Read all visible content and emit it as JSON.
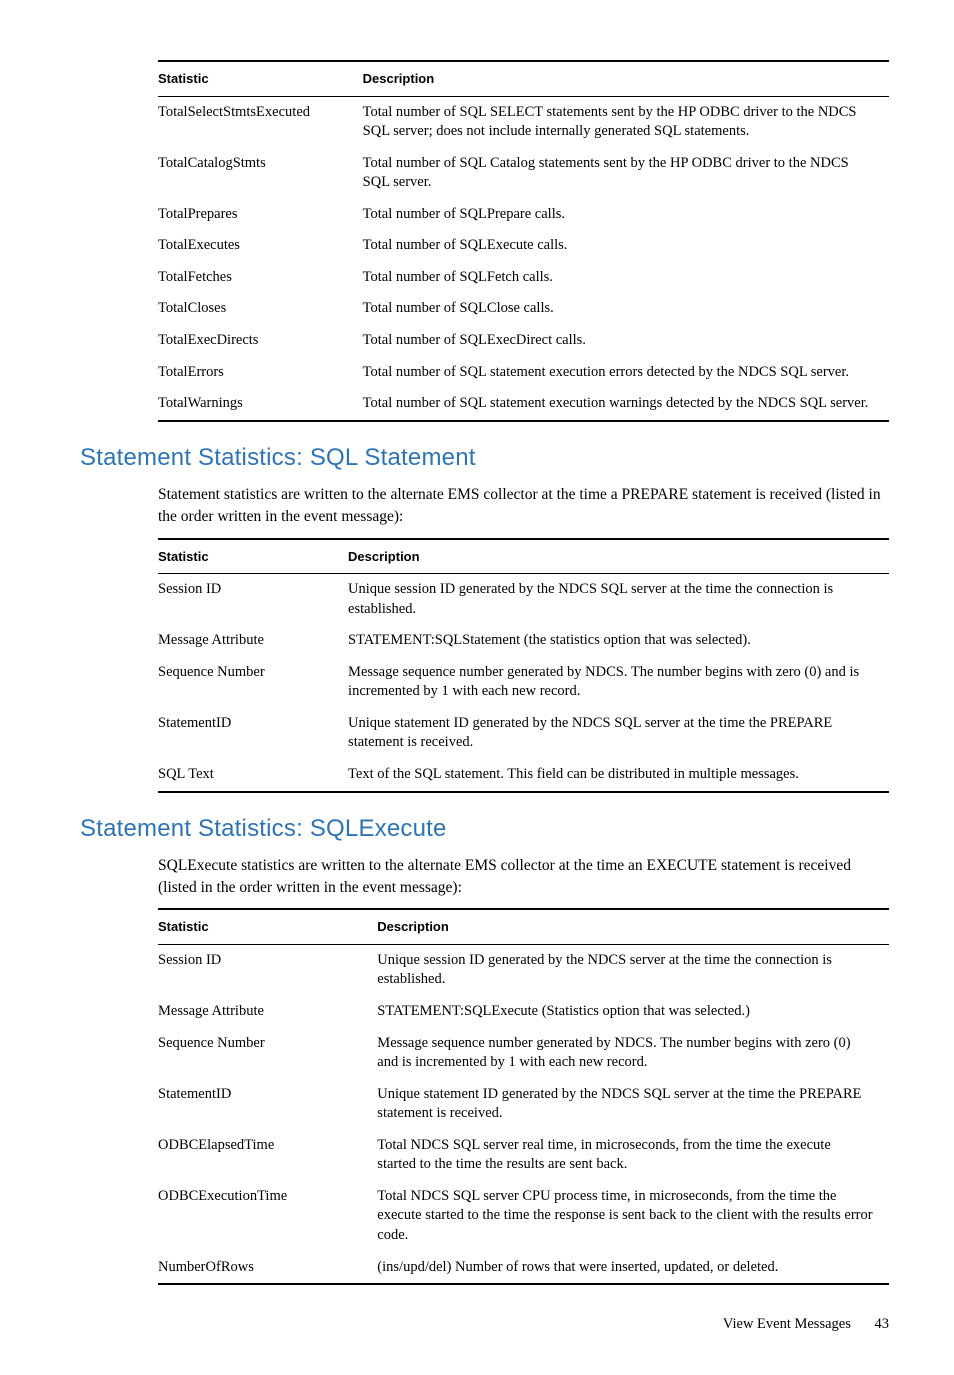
{
  "colors": {
    "heading": "#2d74b5",
    "rule": "#000000",
    "text": "#000000",
    "background": "#ffffff"
  },
  "typography": {
    "body_font": "Palatino / serif",
    "heading_font": "Helvetica Neue / sans-serif",
    "body_size_pt": 11,
    "heading_size_pt": 18,
    "table_header_size_pt": 10
  },
  "table1": {
    "headers": {
      "col1": "Statistic",
      "col2": "Description"
    },
    "rows": [
      {
        "stat": "TotalSelectStmtsExecuted",
        "desc": "Total number of SQL SELECT statements sent by the HP ODBC driver to the NDCS SQL server; does not include internally generated SQL statements."
      },
      {
        "stat": "TotalCatalogStmts",
        "desc": "Total number of SQL Catalog statements sent by the HP ODBC driver to the NDCS SQL server."
      },
      {
        "stat": "TotalPrepares",
        "desc": "Total number of SQLPrepare calls."
      },
      {
        "stat": "TotalExecutes",
        "desc": "Total number of SQLExecute calls."
      },
      {
        "stat": "TotalFetches",
        "desc": "Total number of SQLFetch calls."
      },
      {
        "stat": "TotalCloses",
        "desc": "Total number of SQLClose calls."
      },
      {
        "stat": "TotalExecDirects",
        "desc": "Total number of SQLExecDirect calls."
      },
      {
        "stat": "TotalErrors",
        "desc": "Total number of SQL statement execution errors detected by the NDCS SQL server."
      },
      {
        "stat": "TotalWarnings",
        "desc": "Total number of SQL statement execution warnings detected by the NDCS SQL server."
      }
    ]
  },
  "section2": {
    "heading": "Statement Statistics: SQL Statement",
    "paragraph": "Statement statistics are written to the alternate EMS collector at the time a PREPARE statement is received (listed in the order written in the event message):"
  },
  "table2": {
    "headers": {
      "col1": "Statistic",
      "col2": "Description"
    },
    "rows": [
      {
        "stat": "Session ID",
        "desc": "Unique session ID generated by the NDCS SQL server at the time the connection is established."
      },
      {
        "stat": "Message Attribute",
        "desc": "STATEMENT:SQLStatement (the statistics option that was selected)."
      },
      {
        "stat": "Sequence Number",
        "desc": "Message sequence number generated by NDCS. The number begins with zero (0) and is incremented by 1 with each new record."
      },
      {
        "stat": "StatementID",
        "desc": "Unique statement ID generated by the NDCS SQL server at the time the PREPARE statement is received."
      },
      {
        "stat": "SQL Text",
        "desc": "Text of the SQL statement. This field can be distributed in multiple messages."
      }
    ]
  },
  "section3": {
    "heading": "Statement Statistics: SQLExecute",
    "paragraph": "SQLExecute statistics are written to the alternate EMS collector at the time an EXECUTE statement is received (listed in the order written in the event message):"
  },
  "table3": {
    "headers": {
      "col1": "Statistic",
      "col2": "Description"
    },
    "rows": [
      {
        "stat": "Session ID",
        "desc": "Unique session ID generated by the NDCS server at the time the connection is established."
      },
      {
        "stat": "Message Attribute",
        "desc": "STATEMENT:SQLExecute (Statistics option that was selected.)"
      },
      {
        "stat": "Sequence Number",
        "desc": "Message sequence number generated by NDCS. The number begins with zero (0) and is incremented by 1 with each new record."
      },
      {
        "stat": "StatementID",
        "desc": "Unique statement ID generated by the NDCS SQL server at the time the PREPARE statement is received."
      },
      {
        "stat": "ODBCElapsedTime",
        "desc": "Total NDCS SQL server real time, in microseconds, from the time the execute started to the time the results are sent back."
      },
      {
        "stat": "ODBCExecutionTime",
        "desc": "Total NDCS SQL server CPU process time, in microseconds, from the time the execute started to the time the response is sent back to the client with the results error code."
      },
      {
        "stat": "NumberOfRows",
        "desc": "(ins/upd/del) Number of rows that were inserted, updated, or deleted."
      }
    ]
  },
  "footer": {
    "section": "View Event Messages",
    "page": "43"
  }
}
